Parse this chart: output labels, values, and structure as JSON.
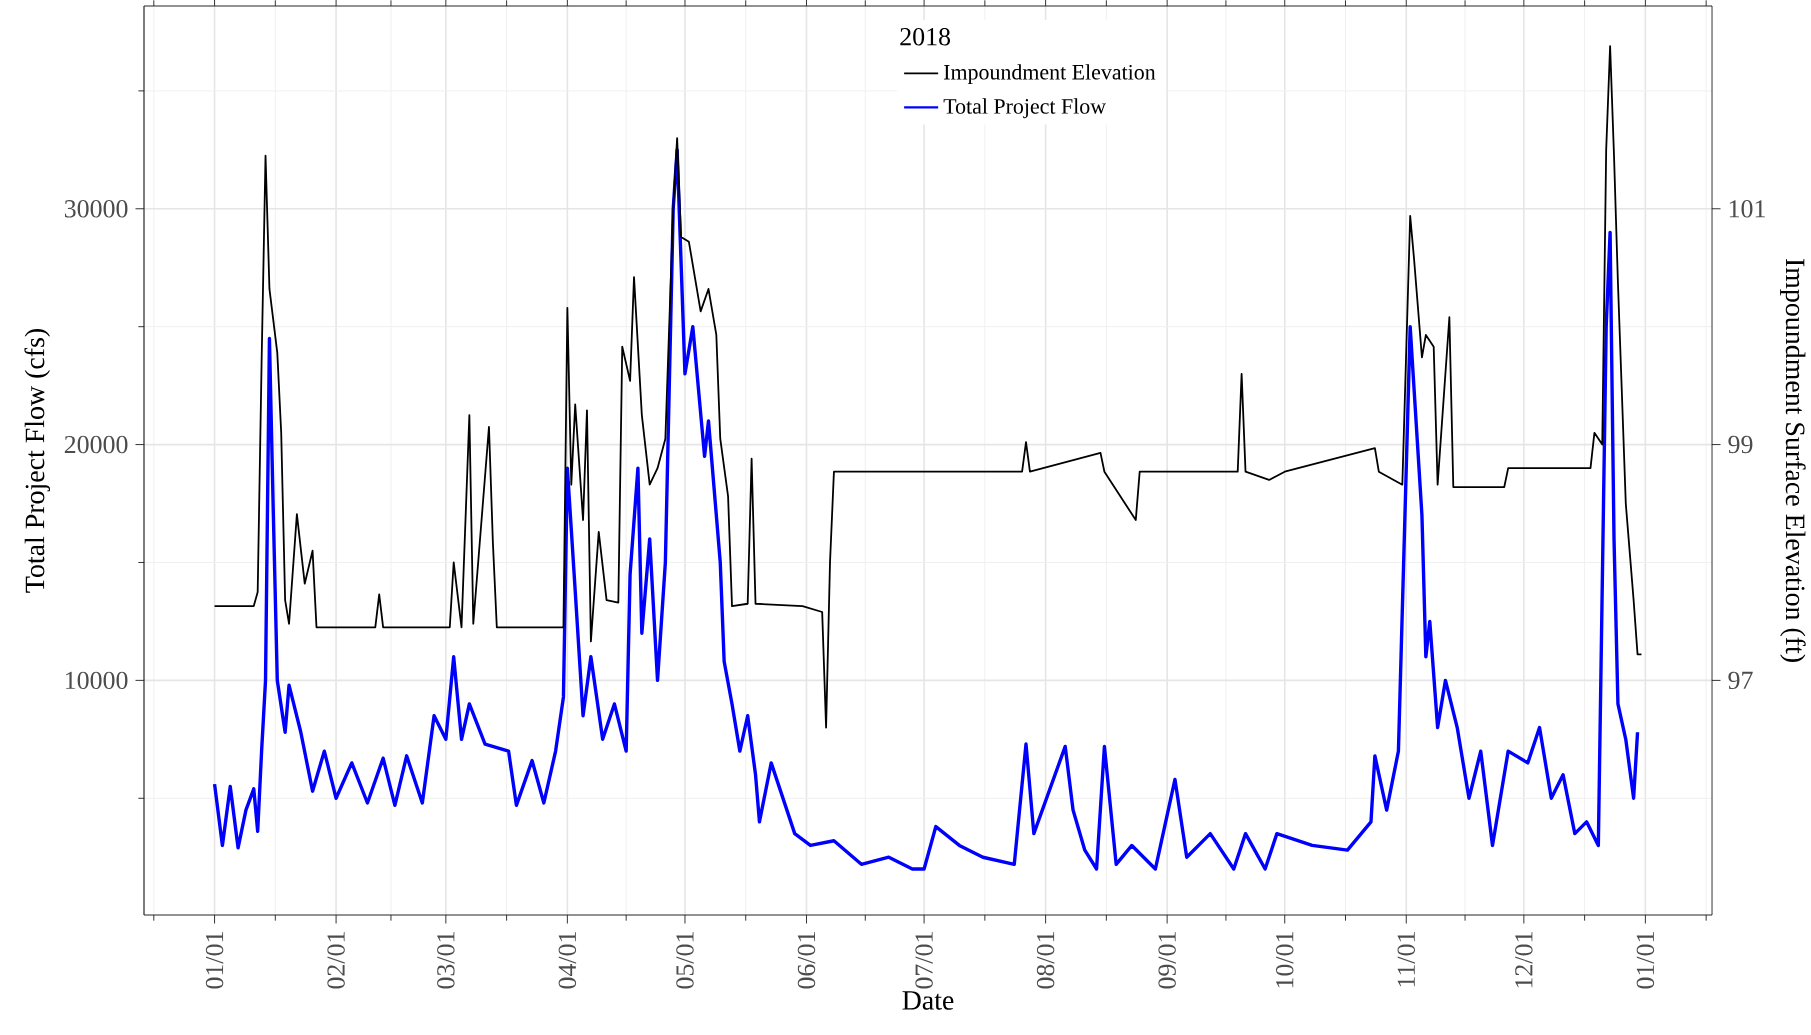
{
  "chart_data": {
    "type": "line",
    "xlabel": "Date",
    "ylabel": "Total Project Flow (cfs)",
    "y2label": "Impoundment Surface Elevation (ft)",
    "legend_title": "2018",
    "legend": "top",
    "grid": true,
    "line_style": "solid",
    "xlim": [
      "2017-12-14",
      "2019-01-18"
    ],
    "xticks": [
      {
        "value": "2018-01-01",
        "label": "01/01"
      },
      {
        "value": "2018-02-01",
        "label": "02/01"
      },
      {
        "value": "2018-03-01",
        "label": "03/01"
      },
      {
        "value": "2018-04-01",
        "label": "04/01"
      },
      {
        "value": "2018-05-01",
        "label": "05/01"
      },
      {
        "value": "2018-06-01",
        "label": "06/01"
      },
      {
        "value": "2018-07-01",
        "label": "07/01"
      },
      {
        "value": "2018-08-01",
        "label": "08/01"
      },
      {
        "value": "2018-09-01",
        "label": "09/01"
      },
      {
        "value": "2018-10-01",
        "label": "10/01"
      },
      {
        "value": "2018-11-01",
        "label": "11/01"
      },
      {
        "value": "2018-12-01",
        "label": "12/01"
      },
      {
        "value": "2019-01-01",
        "label": "01/01"
      }
    ],
    "ylim": [
      50,
      38600
    ],
    "yticks": [
      10000,
      20000,
      30000
    ],
    "y2lim": [
      95.01,
      102.72
    ],
    "y2ticks": [
      97,
      99,
      101
    ],
    "series": [
      {
        "name": "Impoundment Elevation",
        "color": "#000000",
        "axis": "y2",
        "x": [
          "2018-01-01",
          "2018-01-11",
          "2018-01-12",
          "2018-01-13",
          "2018-01-14",
          "2018-01-15",
          "2018-01-17",
          "2018-01-18",
          "2018-01-19",
          "2018-01-20",
          "2018-01-22",
          "2018-01-24",
          "2018-01-26",
          "2018-01-27",
          "2018-02-11",
          "2018-02-12",
          "2018-02-13",
          "2018-03-02",
          "2018-03-03",
          "2018-03-05",
          "2018-03-07",
          "2018-03-08",
          "2018-03-12",
          "2018-03-13",
          "2018-03-14",
          "2018-03-31",
          "2018-04-01",
          "2018-04-02",
          "2018-04-03",
          "2018-04-05",
          "2018-04-06",
          "2018-04-07",
          "2018-04-09",
          "2018-04-11",
          "2018-04-14",
          "2018-04-15",
          "2018-04-17",
          "2018-04-18",
          "2018-04-20",
          "2018-04-22",
          "2018-04-24",
          "2018-04-26",
          "2018-04-28",
          "2018-04-29",
          "2018-04-30",
          "2018-05-02",
          "2018-05-05",
          "2018-05-07",
          "2018-05-09",
          "2018-05-10",
          "2018-05-12",
          "2018-05-13",
          "2018-05-17",
          "2018-05-18",
          "2018-05-19",
          "2018-05-31",
          "2018-06-05",
          "2018-06-06",
          "2018-06-07",
          "2018-06-08",
          "2018-07-26",
          "2018-07-27",
          "2018-07-28",
          "2018-08-15",
          "2018-08-16",
          "2018-08-24",
          "2018-08-25",
          "2018-09-19",
          "2018-09-20",
          "2018-09-21",
          "2018-09-27",
          "2018-10-01",
          "2018-10-24",
          "2018-10-25",
          "2018-10-31",
          "2018-11-02",
          "2018-11-03",
          "2018-11-05",
          "2018-11-06",
          "2018-11-08",
          "2018-11-09",
          "2018-11-12",
          "2018-11-13",
          "2018-11-26",
          "2018-11-27",
          "2018-12-18",
          "2018-12-19",
          "2018-12-21",
          "2018-12-22",
          "2018-12-23",
          "2018-12-24",
          "2018-12-25",
          "2018-12-26",
          "2018-12-27",
          "2018-12-28",
          "2018-12-29",
          "2018-12-30",
          "2018-12-31"
        ],
        "values": [
          97.63,
          97.63,
          97.75,
          99.7,
          101.45,
          100.32,
          99.78,
          99.1,
          97.68,
          97.48,
          98.41,
          97.82,
          98.1,
          97.45,
          97.45,
          97.73,
          97.45,
          97.45,
          98.0,
          97.45,
          99.25,
          97.48,
          99.15,
          98.17,
          97.45,
          97.45,
          100.16,
          98.66,
          99.34,
          98.36,
          99.29,
          97.33,
          98.26,
          97.68,
          97.66,
          99.83,
          99.54,
          100.42,
          99.25,
          98.66,
          98.8,
          99.05,
          101.0,
          101.6,
          100.76,
          100.72,
          100.13,
          100.32,
          99.93,
          99.05,
          98.56,
          97.63,
          97.65,
          98.88,
          97.65,
          97.63,
          97.58,
          96.6,
          98.0,
          98.77,
          98.77,
          99.02,
          98.77,
          98.93,
          98.77,
          98.36,
          98.77,
          98.77,
          99.6,
          98.77,
          98.7,
          98.77,
          98.97,
          98.77,
          98.66,
          100.94,
          100.57,
          99.74,
          99.93,
          99.83,
          98.66,
          100.08,
          98.64,
          98.64,
          98.8,
          98.8,
          99.1,
          99.0,
          101.5,
          102.38,
          101.45,
          100.37,
          99.44,
          98.5,
          98.09,
          97.68,
          97.22,
          97.22
        ]
      },
      {
        "name": "Total Project Flow",
        "color": "#0000ff",
        "x": [
          "2018-01-01",
          "2018-01-03",
          "2018-01-05",
          "2018-01-07",
          "2018-01-09",
          "2018-01-11",
          "2018-01-12",
          "2018-01-13",
          "2018-01-14",
          "2018-01-15",
          "2018-01-16",
          "2018-01-17",
          "2018-01-19",
          "2018-01-20",
          "2018-01-23",
          "2018-01-26",
          "2018-01-29",
          "2018-02-01",
          "2018-02-05",
          "2018-02-09",
          "2018-02-13",
          "2018-02-16",
          "2018-02-19",
          "2018-02-23",
          "2018-02-26",
          "2018-03-01",
          "2018-03-03",
          "2018-03-05",
          "2018-03-07",
          "2018-03-11",
          "2018-03-17",
          "2018-03-19",
          "2018-03-23",
          "2018-03-26",
          "2018-03-29",
          "2018-03-31",
          "2018-04-01",
          "2018-04-03",
          "2018-04-05",
          "2018-04-07",
          "2018-04-10",
          "2018-04-13",
          "2018-04-16",
          "2018-04-17",
          "2018-04-19",
          "2018-04-20",
          "2018-04-22",
          "2018-04-24",
          "2018-04-26",
          "2018-04-28",
          "2018-04-29",
          "2018-05-01",
          "2018-05-03",
          "2018-05-06",
          "2018-05-07",
          "2018-05-10",
          "2018-05-11",
          "2018-05-13",
          "2018-05-15",
          "2018-05-17",
          "2018-05-19",
          "2018-05-20",
          "2018-05-23",
          "2018-05-29",
          "2018-06-02",
          "2018-06-08",
          "2018-06-15",
          "2018-06-22",
          "2018-06-28",
          "2018-07-01",
          "2018-07-04",
          "2018-07-10",
          "2018-07-16",
          "2018-07-24",
          "2018-07-27",
          "2018-07-29",
          "2018-08-06",
          "2018-08-08",
          "2018-08-11",
          "2018-08-14",
          "2018-08-16",
          "2018-08-19",
          "2018-08-23",
          "2018-08-29",
          "2018-09-03",
          "2018-09-06",
          "2018-09-12",
          "2018-09-18",
          "2018-09-21",
          "2018-09-26",
          "2018-09-29",
          "2018-10-08",
          "2018-10-17",
          "2018-10-23",
          "2018-10-24",
          "2018-10-27",
          "2018-10-30",
          "2018-11-02",
          "2018-11-05",
          "2018-11-06",
          "2018-11-07",
          "2018-11-09",
          "2018-11-11",
          "2018-11-14",
          "2018-11-17",
          "2018-11-20",
          "2018-11-23",
          "2018-11-27",
          "2018-12-02",
          "2018-12-05",
          "2018-12-08",
          "2018-12-11",
          "2018-12-14",
          "2018-12-17",
          "2018-12-20",
          "2018-12-22",
          "2018-12-23",
          "2018-12-24",
          "2018-12-25",
          "2018-12-27",
          "2018-12-29",
          "2018-12-30"
        ],
        "values": [
          5600,
          3000,
          5500,
          2900,
          4500,
          5400,
          3600,
          7000,
          10000,
          24500,
          17000,
          10000,
          7800,
          9800,
          7800,
          5300,
          7000,
          5000,
          6500,
          4800,
          6700,
          4700,
          6800,
          4800,
          8500,
          7500,
          11000,
          7500,
          9000,
          7300,
          7000,
          4700,
          6600,
          4800,
          7000,
          9300,
          19000,
          13800,
          8500,
          11000,
          7500,
          9000,
          7000,
          14500,
          19000,
          12000,
          16000,
          10000,
          15000,
          30000,
          32500,
          23000,
          25000,
          19500,
          21000,
          15000,
          10800,
          9000,
          7000,
          8500,
          6000,
          4000,
          6500,
          3500,
          3000,
          3200,
          2200,
          2500,
          2000,
          2000,
          3800,
          3000,
          2500,
          2200,
          7300,
          3500,
          7200,
          4500,
          2800,
          2000,
          7200,
          2200,
          3000,
          2000,
          5800,
          2500,
          3500,
          2000,
          3500,
          2000,
          3500,
          3000,
          2800,
          4000,
          6800,
          4500,
          7000,
          25000,
          17000,
          11000,
          12500,
          8000,
          10000,
          8000,
          5000,
          7000,
          3000,
          7000,
          6500,
          8000,
          5000,
          6000,
          3500,
          4000,
          3000,
          25000,
          29000,
          16000,
          9000,
          7500,
          5000,
          7800
        ]
      }
    ]
  }
}
